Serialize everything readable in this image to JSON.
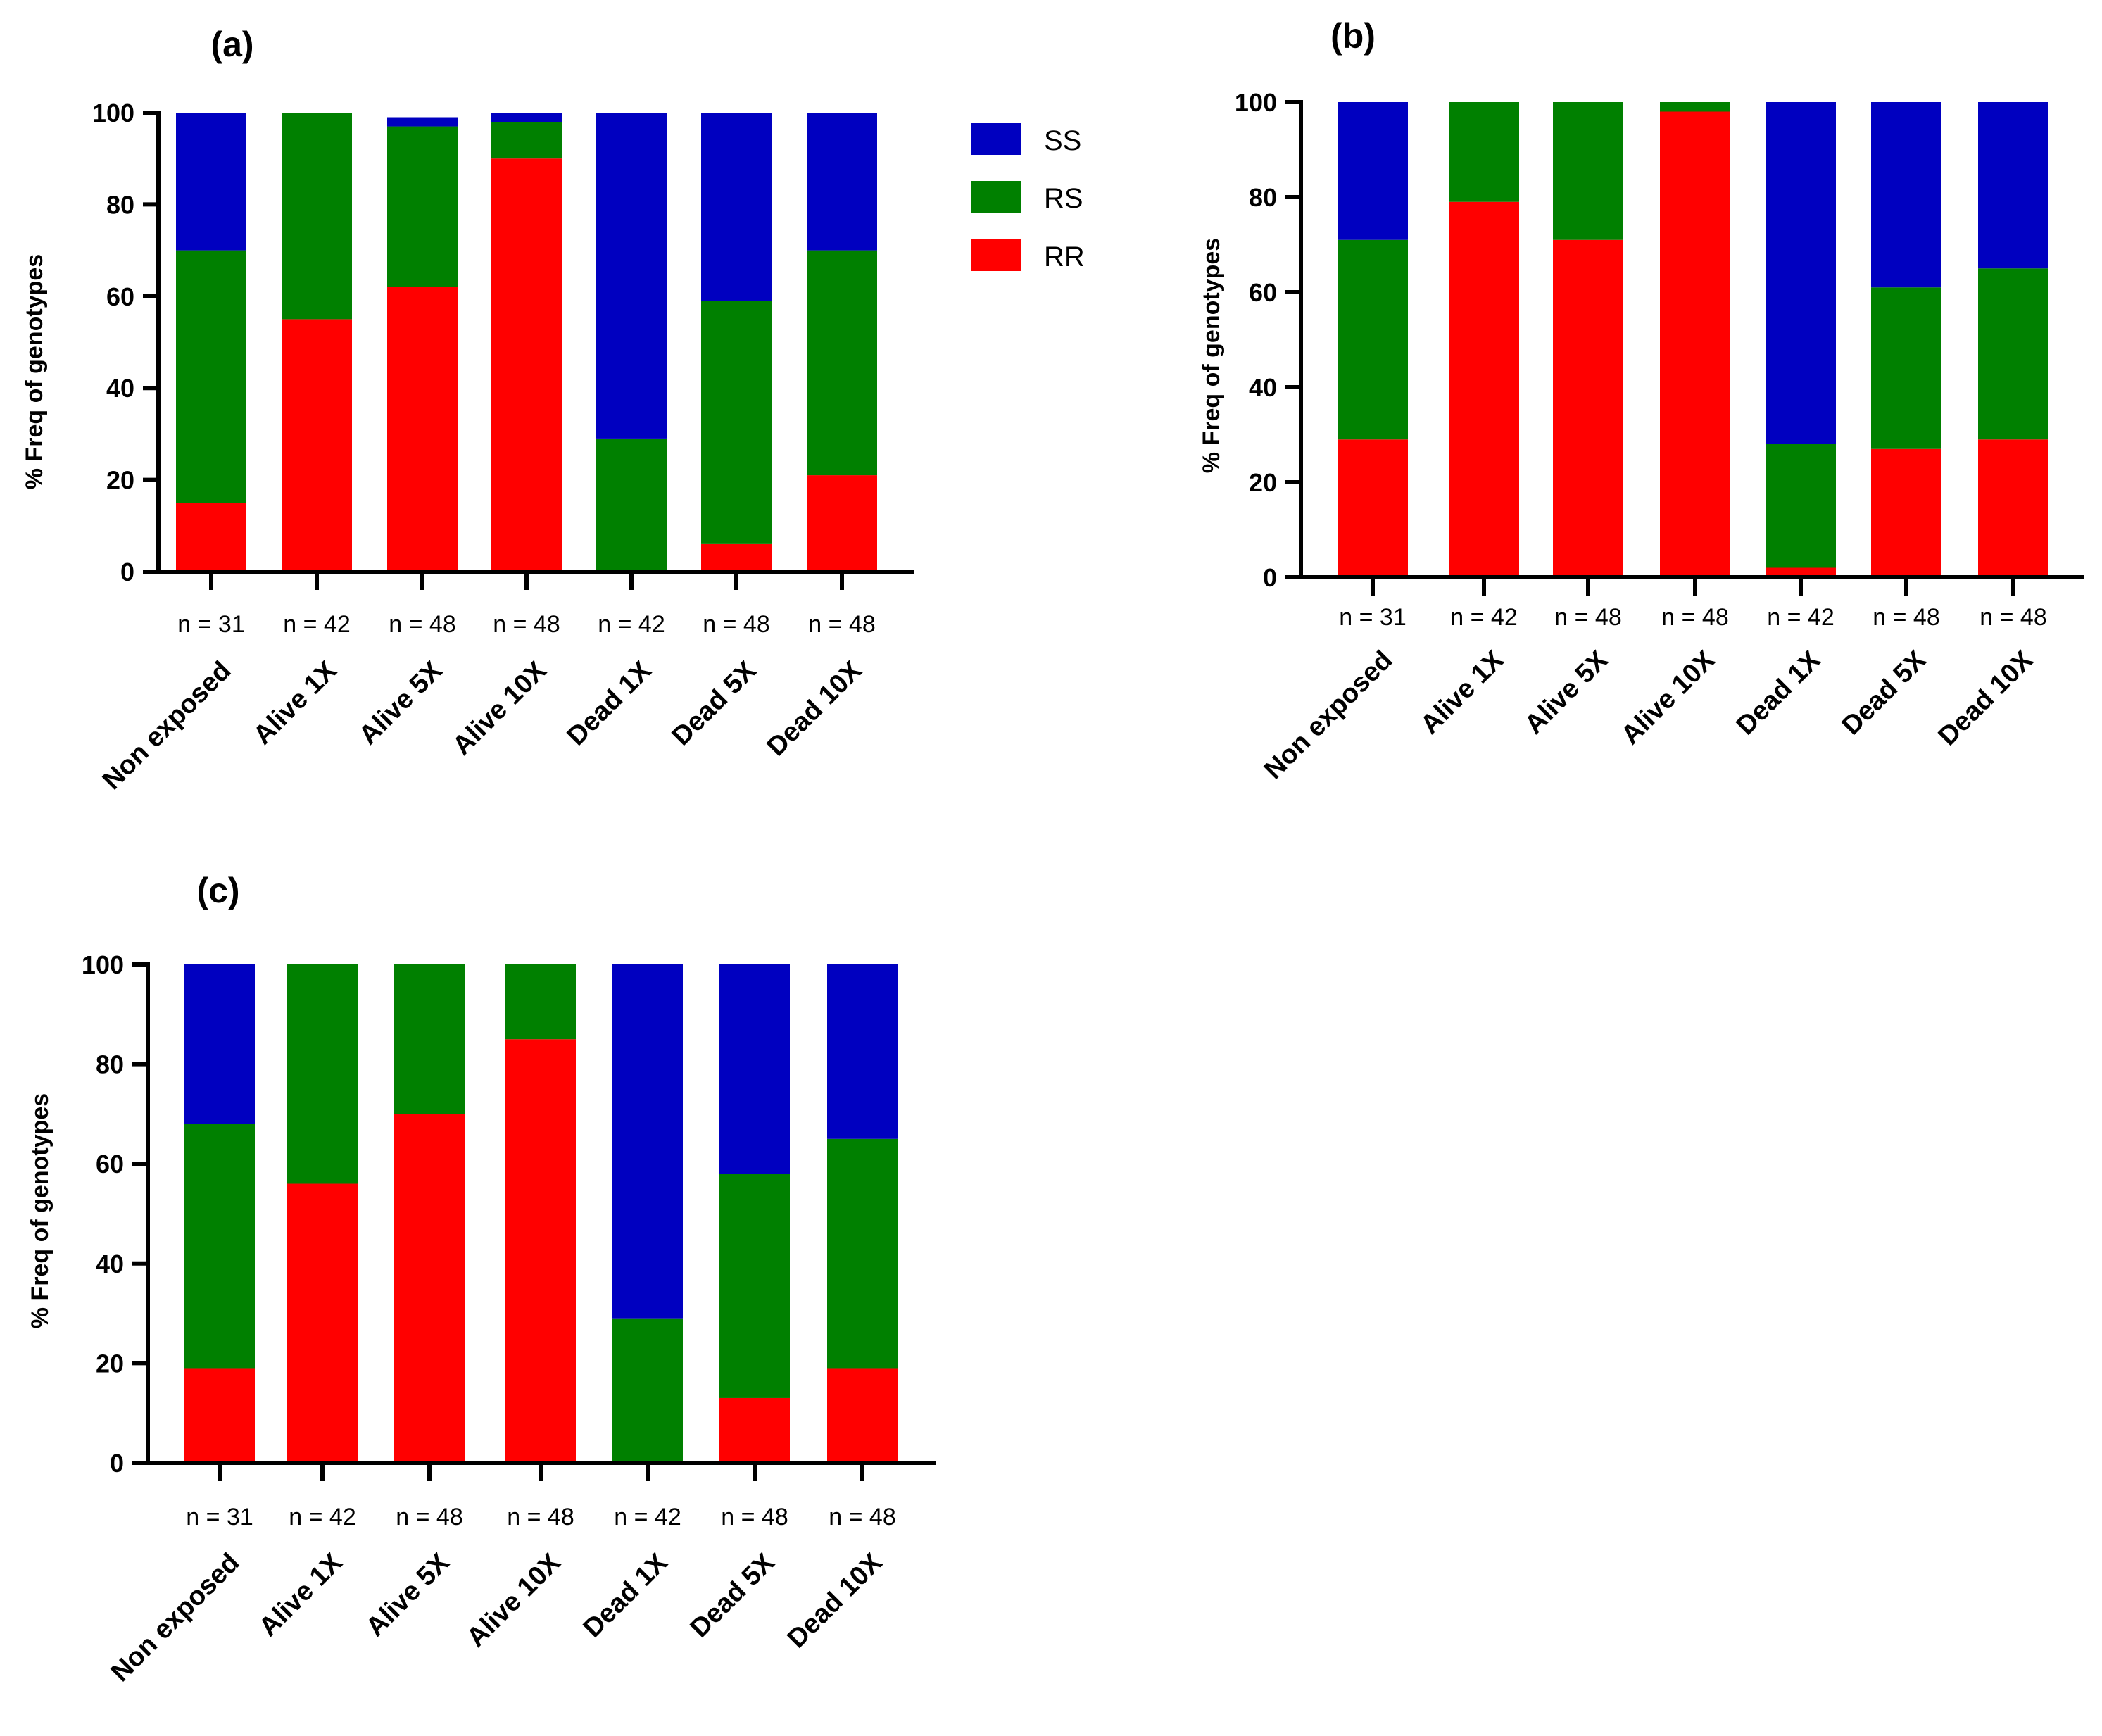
{
  "legend": {
    "entries": [
      {
        "key": "SS",
        "label": "SS"
      },
      {
        "key": "RS",
        "label": "RS"
      },
      {
        "key": "RR",
        "label": "RR"
      }
    ]
  },
  "colors": {
    "SS": "#0000c0",
    "RS": "#008000",
    "RR": "#ff0000"
  },
  "chart_data": [
    {
      "type": "bar",
      "stacked": true,
      "panel_label": "(a)",
      "ylabel": "% Freq of genotypes",
      "ylim": [
        0,
        100
      ],
      "yticks": [
        0,
        20,
        40,
        60,
        80,
        100
      ],
      "categories": [
        "Non exposed",
        "Alive 1X",
        "Alive 5X",
        "Alive 10X",
        "Dead 1X",
        "Dead 5X",
        "Dead 10X"
      ],
      "n_labels": [
        "n = 31",
        "n = 42",
        "n = 48",
        "n = 48",
        "n = 42",
        "n = 48",
        "n = 48"
      ],
      "series": [
        {
          "name": "RR",
          "values": [
            15,
            55,
            62,
            90,
            0,
            6,
            21
          ]
        },
        {
          "name": "RS",
          "values": [
            55,
            45,
            35,
            8,
            29,
            53,
            49
          ]
        },
        {
          "name": "SS",
          "values": [
            30,
            0,
            2,
            2,
            71,
            41,
            30
          ]
        }
      ]
    },
    {
      "type": "bar",
      "stacked": true,
      "panel_label": "(b)",
      "ylabel": "% Freq of genotypes",
      "ylim": [
        0,
        100
      ],
      "yticks": [
        0,
        20,
        40,
        60,
        80,
        100
      ],
      "categories": [
        "Non exposed",
        "Alive 1X",
        "Alive 5X",
        "Alive 10X",
        "Dead 1X",
        "Dead 5X",
        "Dead 10X"
      ],
      "n_labels": [
        "n = 31",
        "n = 42",
        "n = 48",
        "n = 48",
        "n = 42",
        "n = 48",
        "n = 48"
      ],
      "series": [
        {
          "name": "RR",
          "values": [
            29,
            79,
            71,
            98,
            2,
            27,
            29
          ]
        },
        {
          "name": "RS",
          "values": [
            42,
            21,
            29,
            2,
            26,
            34,
            36
          ]
        },
        {
          "name": "SS",
          "values": [
            29,
            0,
            0,
            0,
            72,
            39,
            35
          ]
        }
      ]
    },
    {
      "type": "bar",
      "stacked": true,
      "panel_label": "(c)",
      "ylabel": "% Freq of genotypes",
      "ylim": [
        0,
        100
      ],
      "yticks": [
        0,
        20,
        40,
        60,
        80,
        100
      ],
      "categories": [
        "Non exposed",
        "Alive 1X",
        "Alive 5X",
        "Alive 10X",
        "Dead 1X",
        "Dead 5X",
        "Dead 10X"
      ],
      "n_labels": [
        "n = 31",
        "n = 42",
        "n = 48",
        "n = 48",
        "n = 42",
        "n = 48",
        "n = 48"
      ],
      "series": [
        {
          "name": "RR",
          "values": [
            19,
            56,
            70,
            85,
            0,
            13,
            19
          ]
        },
        {
          "name": "RS",
          "values": [
            49,
            44,
            30,
            15,
            29,
            45,
            46
          ]
        },
        {
          "name": "SS",
          "values": [
            32,
            0,
            0,
            0,
            71,
            42,
            35
          ]
        }
      ]
    }
  ]
}
